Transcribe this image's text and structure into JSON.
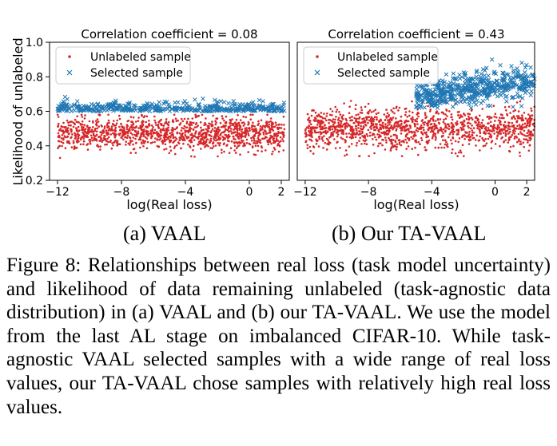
{
  "chart_data": [
    {
      "type": "scatter",
      "title": "Correlation coefficient = 0.08",
      "xlabel": "log(Real loss)",
      "ylabel": "Likelihood of unlabeled",
      "xlim": [
        -12.5,
        2.5
      ],
      "ylim": [
        0.2,
        1.0
      ],
      "xticks": [
        -12,
        -8,
        -4,
        0,
        2
      ],
      "xtick_labels": [
        "−12",
        "−8",
        "−4",
        "0",
        "2"
      ],
      "yticks": [
        0.2,
        0.4,
        0.6,
        0.8,
        1.0
      ],
      "ytick_labels": [
        "0.2",
        "0.4",
        "0.6",
        "0.8",
        "1.0"
      ],
      "legend_position": "top-left",
      "series": [
        {
          "name": "Unlabeled sample",
          "marker": "dot",
          "color": "#d62728",
          "distribution": {
            "x_range": [
              -12,
              2.2
            ],
            "y_range": [
              0.35,
              0.58
            ],
            "y_center": 0.47
          }
        },
        {
          "name": "Selected sample",
          "marker": "x",
          "color": "#1f77b4",
          "distribution": {
            "x_range": [
              -12,
              2.2
            ],
            "y_range": [
              0.56,
              0.69
            ],
            "y_center": 0.6
          }
        }
      ]
    },
    {
      "type": "scatter",
      "title": "Correlation coefficient = 0.43",
      "xlabel": "log(Real loss)",
      "ylabel": "",
      "xlim": [
        -12.5,
        2.5
      ],
      "ylim": [
        0.2,
        1.0
      ],
      "xticks": [
        -12,
        -8,
        -4,
        0,
        2
      ],
      "xtick_labels": [
        "−12",
        "−8",
        "−4",
        "0",
        "2"
      ],
      "legend_position": "top-left",
      "series": [
        {
          "name": "Unlabeled sample",
          "marker": "dot",
          "color": "#d62728",
          "distribution": {
            "x_range": [
              -12,
              2.5
            ],
            "y_range": [
              0.36,
              0.66
            ],
            "y_center": 0.5
          }
        },
        {
          "name": "Selected sample",
          "marker": "x",
          "color": "#1f77b4",
          "distribution": {
            "x_range": [
              -5,
              2.5
            ],
            "y_range": [
              0.62,
              0.9
            ],
            "y_trend": [
              0.68,
              0.78
            ]
          }
        }
      ]
    }
  ],
  "subfigures": [
    "(a) VAAL",
    "(b) Our TA-VAAL"
  ],
  "caption": "Figure 8: Relationships between real loss (task model uncertainty) and likelihood of data remaining unlabeled (task-agnostic data distribution) in (a) VAAL and (b) our TA-VAAL. We use the model from the last AL stage on imbalanced CIFAR-10. While task-agnostic VAAL selected samples with a wide range of real loss values, our TA-VAAL chose samples with relatively high real loss values."
}
